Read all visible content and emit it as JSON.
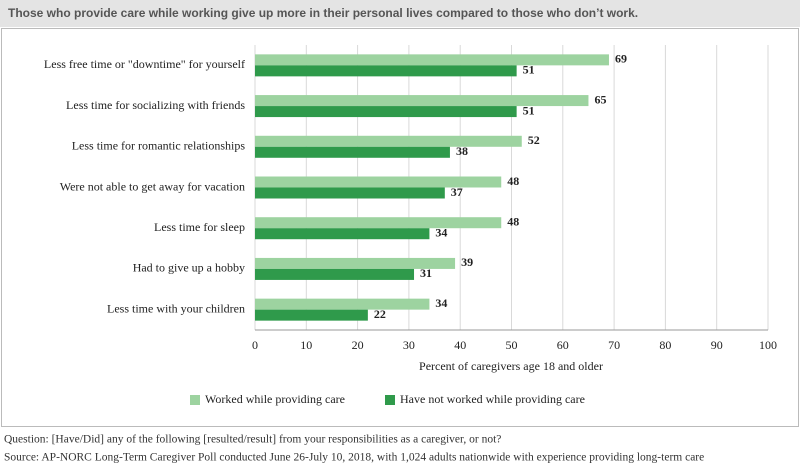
{
  "chart_data": {
    "type": "bar",
    "orientation": "horizontal",
    "title": "Those who provide care while working give up more in their personal lives compared to those who don’t work.",
    "categories": [
      "Less free time or \"downtime\" for yourself",
      "Less time for socializing with friends",
      "Less time for romantic relationships",
      "Were not able to get away for vacation",
      "Less time for sleep",
      "Had to give up a hobby",
      "Less time with your children"
    ],
    "series": [
      {
        "name": "Worked while providing care",
        "color": "#9dd3a0",
        "values": [
          69,
          65,
          52,
          48,
          48,
          39,
          34
        ]
      },
      {
        "name": "Have not worked while providing care",
        "color": "#2f9a4b",
        "values": [
          51,
          51,
          38,
          37,
          34,
          31,
          22
        ]
      }
    ],
    "xlabel": "Percent of caregivers age 18 and older",
    "xlim": [
      0,
      100
    ],
    "xticks": [
      0,
      10,
      20,
      30,
      40,
      50,
      60,
      70,
      80,
      90,
      100
    ],
    "grid": true,
    "legend": "bottom",
    "notes": [
      "Question: [Have/Did] any of the following [resulted/result] from your responsibilities as a caregiver, or not?",
      "Source: AP-NORC Long-Term Caregiver Poll conducted June 26-July 10, 2018, with 1,024 adults nationwide with experience providing long-term care"
    ]
  }
}
